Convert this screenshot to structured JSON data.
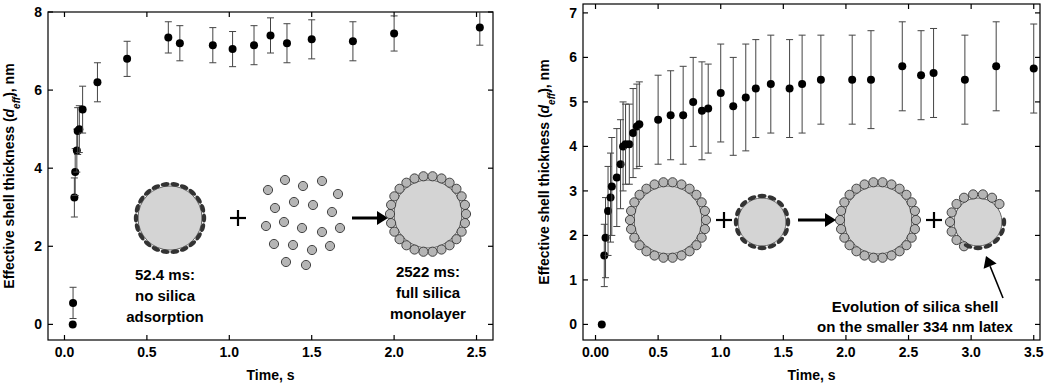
{
  "chart_data": [
    {
      "type": "scatter",
      "color": "#000000",
      "marker": "circle",
      "grid": false,
      "xlabel": "Time, s",
      "ylabel": [
        "Effective shell thickness (",
        "d",
        "eff",
        "), nm"
      ],
      "xlim": [
        -0.1,
        2.6
      ],
      "xticks": [
        {
          "value": 0,
          "label": "0.0"
        },
        {
          "value": 0.5,
          "label": "0.5"
        },
        {
          "value": 1,
          "label": "1.0"
        },
        {
          "value": 1.5,
          "label": "1.5"
        },
        {
          "value": 2,
          "label": "2.0"
        },
        {
          "value": 2.5,
          "label": "2.5"
        }
      ],
      "ylim": [
        -0.4,
        8
      ],
      "yticks": [
        0,
        2,
        4,
        6,
        8
      ],
      "x": [
        0.05,
        0.052,
        0.06,
        0.065,
        0.075,
        0.08,
        0.09,
        0.11,
        0.2,
        0.38,
        0.63,
        0.7,
        0.9,
        1.02,
        1.15,
        1.25,
        1.35,
        1.5,
        1.75,
        2.0,
        2.52
      ],
      "values": [
        0.0,
        0.55,
        3.25,
        3.9,
        4.45,
        4.95,
        5.0,
        5.5,
        6.2,
        6.8,
        7.35,
        7.2,
        7.15,
        7.05,
        7.15,
        7.4,
        7.2,
        7.3,
        7.25,
        7.45,
        7.6
      ],
      "errors": [
        0,
        0.4,
        0.5,
        0.6,
        0.55,
        0.6,
        0.6,
        0.6,
        0.5,
        0.45,
        0.4,
        0.45,
        0.45,
        0.45,
        0.5,
        0.45,
        0.5,
        0.5,
        0.5,
        0.45,
        0.45
      ],
      "annotations": [
        [
          "52.4 ms:",
          "no silica",
          "adsorption"
        ],
        [
          "2522 ms:",
          "full silica",
          "monolayer"
        ]
      ]
    },
    {
      "type": "scatter",
      "color": "#000000",
      "marker": "circle",
      "grid": false,
      "xlabel": "Time, s",
      "ylabel": [
        "Effective shell thickness (",
        "d",
        "eff",
        "), nm"
      ],
      "xlim": [
        -0.1,
        3.55
      ],
      "xticks": [
        {
          "value": 0,
          "label": "0.00"
        },
        {
          "value": 0.5,
          "label": "0.5"
        },
        {
          "value": 1,
          "label": "1.0"
        },
        {
          "value": 1.5,
          "label": "1.5"
        },
        {
          "value": 2,
          "label": "2.0"
        },
        {
          "value": 2.5,
          "label": "2.5"
        },
        {
          "value": 3,
          "label": "3.0"
        },
        {
          "value": 3.5,
          "label": "3.5"
        }
      ],
      "ylim": [
        -0.35,
        7.2
      ],
      "yticks": [
        0,
        1,
        2,
        3,
        4,
        5,
        6,
        7
      ],
      "x": [
        0.05,
        0.07,
        0.08,
        0.1,
        0.12,
        0.13,
        0.17,
        0.2,
        0.22,
        0.24,
        0.27,
        0.3,
        0.33,
        0.35,
        0.5,
        0.6,
        0.7,
        0.78,
        0.85,
        0.9,
        1.0,
        1.1,
        1.2,
        1.28,
        1.4,
        1.55,
        1.65,
        1.8,
        2.05,
        2.2,
        2.45,
        2.6,
        2.7,
        2.95,
        3.2,
        3.5
      ],
      "values": [
        0.0,
        1.55,
        1.95,
        2.55,
        2.85,
        3.1,
        3.3,
        3.6,
        4.0,
        4.05,
        4.05,
        4.3,
        4.45,
        4.5,
        4.6,
        4.7,
        4.7,
        5.0,
        4.8,
        4.85,
        5.2,
        4.9,
        5.1,
        5.3,
        5.4,
        5.3,
        5.4,
        5.5,
        5.5,
        5.5,
        5.8,
        5.6,
        5.65,
        5.5,
        5.8,
        5.75
      ],
      "errors": [
        0,
        0.7,
        0.9,
        1.0,
        1.0,
        1.1,
        1.1,
        1.0,
        1.0,
        0.9,
        0.9,
        1.0,
        0.95,
        0.95,
        1.0,
        1.0,
        1.1,
        1.0,
        1.1,
        1.0,
        1.1,
        1.1,
        1.2,
        1.1,
        1.1,
        1.1,
        1.1,
        1.0,
        1.0,
        1.1,
        1.0,
        1.0,
        1.0,
        1.0,
        1.0,
        1.0
      ],
      "annotations": [
        [
          "Evolution of silica shell",
          "on the smaller 334 nm latex"
        ]
      ]
    }
  ]
}
